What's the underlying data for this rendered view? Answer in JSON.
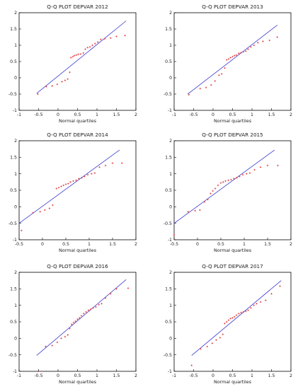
{
  "chart_data": [
    {
      "type": "scatter",
      "title": "Q-Q PLOT DEPVAR 2012",
      "xlabel": "Normal quartiles",
      "ylabel": "",
      "xlim": [
        -1,
        2
      ],
      "ylim": [
        -1,
        2
      ],
      "xticks": [
        "-1",
        "-0.5",
        "0",
        "0.5",
        "1",
        "1.5",
        "2"
      ],
      "yticks": [
        "-1",
        "-0.5",
        "0",
        "0.5",
        "1",
        "1.5",
        "2"
      ],
      "grid": false,
      "point_color": "#e03a3a",
      "line_color": "#3a3ad0",
      "points": {
        "x": [
          -0.52,
          -0.3,
          -0.15,
          -0.02,
          0.1,
          0.18,
          0.25,
          0.3,
          0.33,
          0.38,
          0.42,
          0.47,
          0.52,
          0.58,
          0.65,
          0.7,
          0.76,
          0.82,
          0.88,
          0.95,
          1.02,
          1.1,
          1.2,
          1.35,
          1.5,
          1.72
        ],
        "y": [
          -0.5,
          -0.27,
          -0.25,
          -0.2,
          -0.12,
          -0.08,
          -0.04,
          0.17,
          0.62,
          0.65,
          0.68,
          0.7,
          0.72,
          0.73,
          0.76,
          0.88,
          0.93,
          0.95,
          1.0,
          1.05,
          1.1,
          1.18,
          1.2,
          1.22,
          1.27,
          1.3
        ]
      },
      "reference_line": {
        "x": [
          -0.55,
          1.75
        ],
        "y": [
          -0.48,
          1.75
        ]
      }
    },
    {
      "type": "scatter",
      "title": "Q-Q PLOT DEPVAR 2013",
      "xlabel": "Normal quartiles",
      "ylabel": "",
      "xlim": [
        -1,
        2
      ],
      "ylim": [
        -1,
        2
      ],
      "xticks": [
        "-1",
        "-0.5",
        "0",
        "0.5",
        "1",
        "1.5",
        "2"
      ],
      "yticks": [
        "-1",
        "-0.5",
        "0",
        "0.5",
        "1",
        "1.5",
        "2"
      ],
      "grid": false,
      "point_color": "#e03a3a",
      "line_color": "#3a3ad0",
      "points": {
        "x": [
          -0.62,
          -0.33,
          -0.18,
          -0.05,
          0.05,
          0.15,
          0.22,
          0.3,
          0.35,
          0.4,
          0.45,
          0.5,
          0.55,
          0.6,
          0.66,
          0.72,
          0.78,
          0.84,
          0.9,
          0.97,
          1.05,
          1.15,
          1.28,
          1.45,
          1.65
        ],
        "y": [
          -0.52,
          -0.33,
          -0.3,
          -0.22,
          -0.1,
          0.08,
          0.12,
          0.3,
          0.55,
          0.58,
          0.62,
          0.65,
          0.68,
          0.7,
          0.75,
          0.77,
          0.8,
          0.82,
          0.88,
          0.95,
          1.0,
          1.08,
          1.12,
          1.15,
          1.25
        ]
      },
      "reference_line": {
        "x": [
          -0.65,
          1.65
        ],
        "y": [
          -0.5,
          1.62
        ]
      }
    },
    {
      "type": "scatter",
      "title": "Q-Q PLOT DEPVAR 2014",
      "xlabel": "Normal quartiles",
      "ylabel": "",
      "xlim": [
        -0.5,
        2
      ],
      "ylim": [
        -1,
        2
      ],
      "xticks": [
        "-0.5",
        "0",
        "0.5",
        "1",
        "1.5",
        "2"
      ],
      "yticks": [
        "-1",
        "-0.5",
        "0",
        "0.5",
        "1",
        "1.5",
        "2"
      ],
      "grid": false,
      "point_color": "#e03a3a",
      "line_color": "#3a3ad0",
      "points": {
        "x": [
          -0.45,
          -0.2,
          -0.05,
          0.05,
          0.15,
          0.22,
          0.3,
          0.35,
          0.4,
          0.45,
          0.5,
          0.55,
          0.6,
          0.66,
          0.72,
          0.78,
          0.84,
          0.9,
          0.97,
          1.05,
          1.12,
          1.22,
          1.35,
          1.5,
          1.7
        ],
        "y": [
          -0.72,
          -0.18,
          -0.15,
          -0.1,
          -0.05,
          0.05,
          0.55,
          0.58,
          0.62,
          0.65,
          0.68,
          0.7,
          0.75,
          0.78,
          0.8,
          0.85,
          0.88,
          0.92,
          0.97,
          1.0,
          1.02,
          1.2,
          1.25,
          1.32,
          1.32
        ]
      },
      "reference_line": {
        "x": [
          -0.5,
          1.65
        ],
        "y": [
          -0.5,
          1.72
        ]
      }
    },
    {
      "type": "scatter",
      "title": "Q-Q PLOT DEPVAR 2015",
      "xlabel": "Normal quartiles",
      "ylabel": "",
      "xlim": [
        -0.5,
        2
      ],
      "ylim": [
        -1,
        2
      ],
      "xticks": [
        "-0.5",
        "0",
        "0.5",
        "1",
        "1.5",
        "2"
      ],
      "yticks": [
        "-1",
        "-0.5",
        "0",
        "0.5",
        "1",
        "1.5",
        "2"
      ],
      "grid": false,
      "point_color": "#e03a3a",
      "line_color": "#3a3ad0",
      "points": {
        "x": [
          -0.5,
          -0.2,
          -0.05,
          0.05,
          0.15,
          0.22,
          0.28,
          0.33,
          0.38,
          0.44,
          0.5,
          0.55,
          0.6,
          0.66,
          0.72,
          0.78,
          0.84,
          0.9,
          0.97,
          1.05,
          1.12,
          1.22,
          1.35,
          1.5,
          1.72
        ],
        "y": [
          -0.85,
          -0.15,
          -0.12,
          -0.1,
          0.15,
          0.22,
          0.4,
          0.48,
          0.55,
          0.65,
          0.72,
          0.75,
          0.78,
          0.8,
          0.82,
          0.85,
          0.88,
          0.92,
          0.97,
          1.0,
          1.02,
          1.12,
          1.2,
          1.25,
          1.25
        ]
      },
      "reference_line": {
        "x": [
          -0.5,
          1.65
        ],
        "y": [
          -0.5,
          1.72
        ]
      }
    },
    {
      "type": "scatter",
      "title": "Q-Q PLOT DEPVAR 2016",
      "xlabel": "Normal quartiles",
      "ylabel": "",
      "xlim": [
        -1,
        2
      ],
      "ylim": [
        -1,
        2
      ],
      "xticks": [
        "-1",
        "-0.5",
        "0",
        "0.5",
        "1",
        "1.5",
        "2"
      ],
      "yticks": [
        "-1",
        "-0.5",
        "0",
        "0.5",
        "1",
        "1.5",
        "2"
      ],
      "grid": false,
      "point_color": "#e03a3a",
      "line_color": "#3a3ad0",
      "points": {
        "x": [
          -0.52,
          -0.32,
          -0.15,
          -0.02,
          0.08,
          0.18,
          0.25,
          0.3,
          0.35,
          0.4,
          0.45,
          0.5,
          0.55,
          0.6,
          0.66,
          0.72,
          0.78,
          0.84,
          0.9,
          0.97,
          1.05,
          1.12,
          1.22,
          1.35,
          1.5,
          1.8
        ],
        "y": [
          -1.0,
          -0.25,
          -0.22,
          -0.12,
          0.0,
          0.05,
          0.1,
          0.3,
          0.42,
          0.48,
          0.52,
          0.58,
          0.62,
          0.68,
          0.75,
          0.8,
          0.85,
          0.88,
          0.92,
          0.95,
          1.02,
          1.05,
          1.22,
          1.35,
          1.5,
          1.52
        ]
      },
      "reference_line": {
        "x": [
          -0.55,
          1.75
        ],
        "y": [
          -0.52,
          1.78
        ]
      }
    },
    {
      "type": "scatter",
      "title": "Q-Q PLOT DEPVAR 2017",
      "xlabel": "Normal quartiles",
      "ylabel": "",
      "xlim": [
        -1,
        2
      ],
      "ylim": [
        -1,
        2
      ],
      "xticks": [
        "-1",
        "-0.5",
        "0",
        "0.5",
        "1",
        "1.5",
        "2"
      ],
      "yticks": [
        "-1",
        "-0.5",
        "0",
        "0.5",
        "1",
        "1.5",
        "2"
      ],
      "grid": false,
      "point_color": "#e03a3a",
      "line_color": "#3a3ad0",
      "points": {
        "x": [
          -0.55,
          -0.32,
          -0.15,
          -0.02,
          0.08,
          0.18,
          0.25,
          0.3,
          0.35,
          0.4,
          0.45,
          0.5,
          0.55,
          0.6,
          0.66,
          0.72,
          0.78,
          0.84,
          0.9,
          0.97,
          1.05,
          1.12,
          1.22,
          1.35,
          1.5,
          1.72
        ],
        "y": [
          -0.82,
          -0.32,
          -0.25,
          -0.15,
          -0.05,
          0.02,
          0.12,
          0.45,
          0.5,
          0.55,
          0.6,
          0.62,
          0.65,
          0.7,
          0.75,
          0.78,
          0.8,
          0.82,
          0.85,
          0.92,
          1.0,
          1.05,
          1.1,
          1.15,
          1.35,
          1.58
        ]
      },
      "reference_line": {
        "x": [
          -0.55,
          1.75
        ],
        "y": [
          -0.52,
          1.75
        ]
      }
    }
  ]
}
